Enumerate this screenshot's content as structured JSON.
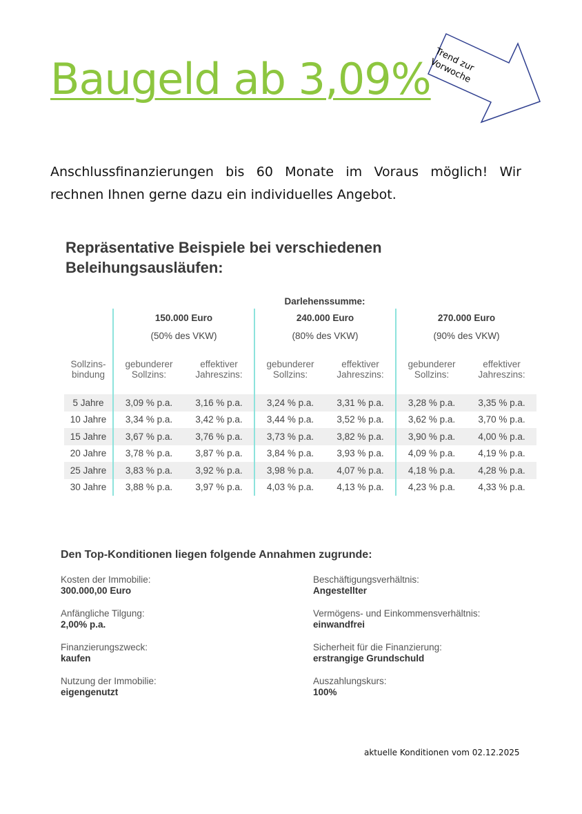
{
  "title": "Baugeld ab 3,09%",
  "trend_label": "Trend zur Vorwoche",
  "intro": "Anschlussfinanzierungen bis 60 Monate im Voraus möglich! Wir rechnen Ihnen gerne dazu ein individuelles Angebot.",
  "examples_heading": "Repräsentative Beispiele bei verschiedenen Beleihungsausläufen:",
  "table": {
    "group_header": "Darlehenssumme:",
    "amounts": [
      {
        "amount": "150.000 Euro",
        "ratio": "(50% des VKW)"
      },
      {
        "amount": "240.000 Euro",
        "ratio": "(80% des VKW)"
      },
      {
        "amount": "270.000 Euro",
        "ratio": "(90% des VKW)"
      }
    ],
    "row_header": "Sollzins-bindung",
    "col1": "gebunderer Sollzins:",
    "col2": "effektiver Jahreszins:",
    "rows": [
      {
        "term": "5 Jahre",
        "values": [
          "3,09 % p.a.",
          "3,16 % p.a.",
          "3,24 % p.a.",
          "3,31 % p.a.",
          "3,28 % p.a.",
          "3,35 % p.a."
        ]
      },
      {
        "term": "10 Jahre",
        "values": [
          "3,34 % p.a.",
          "3,42 % p.a.",
          "3,44 % p.a.",
          "3,52 % p.a.",
          "3,62 % p.a.",
          "3,70 % p.a."
        ]
      },
      {
        "term": "15 Jahre",
        "values": [
          "3,67 % p.a.",
          "3,76 % p.a.",
          "3,73 % p.a.",
          "3,82 % p.a.",
          "3,90 % p.a.",
          "4,00 % p.a."
        ]
      },
      {
        "term": "20 Jahre",
        "values": [
          "3,78 % p.a.",
          "3,87 % p.a.",
          "3,84 % p.a.",
          "3,93 % p.a.",
          "4,09 % p.a.",
          "4,19 % p.a."
        ]
      },
      {
        "term": "25 Jahre",
        "values": [
          "3,83 % p.a.",
          "3,92 % p.a.",
          "3,98 % p.a.",
          "4,07 % p.a.",
          "4,18 % p.a.",
          "4,28 % p.a."
        ]
      },
      {
        "term": "30 Jahre",
        "values": [
          "3,88 % p.a.",
          "3,97 % p.a.",
          "4,03 % p.a.",
          "4,13 % p.a.",
          "4,23 % p.a.",
          "4,33 % p.a."
        ]
      }
    ]
  },
  "assumptions_heading": "Den Top-Konditionen liegen folgende Annahmen zugrunde:",
  "assumptions": [
    {
      "label": "Kosten der Immobilie:",
      "value": "300.000,00 Euro"
    },
    {
      "label": "Beschäftigungsverhältnis:",
      "value": "Angestellter"
    },
    {
      "label": "Anfängliche Tilgung:",
      "value": "2,00% p.a."
    },
    {
      "label": "Vermögens- und Einkommensverhältnis:",
      "value": "einwandfrei"
    },
    {
      "label": "Finanzierungszweck:",
      "value": "kaufen"
    },
    {
      "label": "Sicherheit für die Finanzierung:",
      "value": "erstrangige Grundschuld"
    },
    {
      "label": "Nutzung der Immobilie:",
      "value": "eigengenutzt"
    },
    {
      "label": "Auszahlungskurs:",
      "value": "100%"
    }
  ],
  "footer": "aktuelle Konditionen vom 02.12.2025"
}
